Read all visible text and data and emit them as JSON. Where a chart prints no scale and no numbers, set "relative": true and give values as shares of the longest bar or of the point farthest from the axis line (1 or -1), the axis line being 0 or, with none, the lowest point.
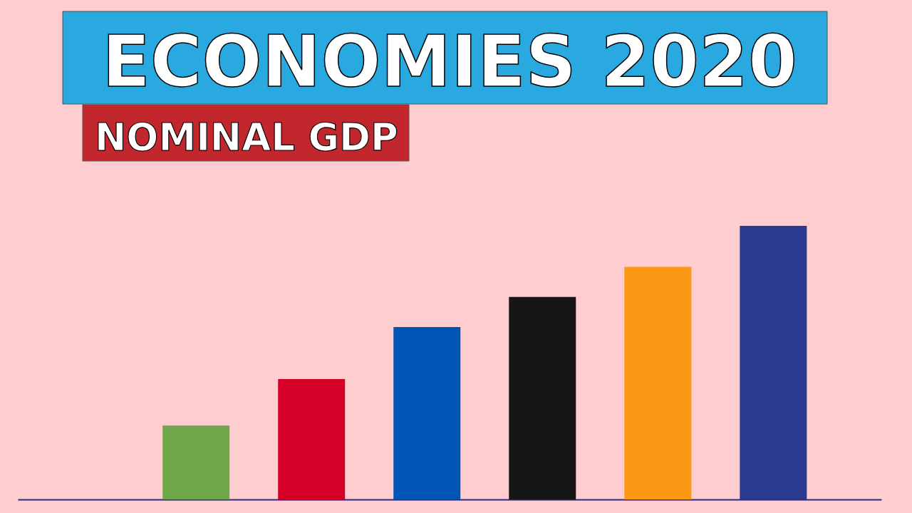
{
  "chart_data": {
    "type": "bar",
    "title": "ECONOMIES 2020",
    "subtitle": "NOMINAL GDP",
    "categories": [
      null,
      null,
      null,
      null,
      null,
      null
    ],
    "values": [
      0.27,
      0.44,
      0.63,
      0.74,
      0.85,
      1
    ],
    "colors": [
      "#70a74a",
      "#d50028",
      "#0054b4",
      "#161616",
      "#fd9814",
      "#293a90"
    ],
    "relative": true
  }
}
